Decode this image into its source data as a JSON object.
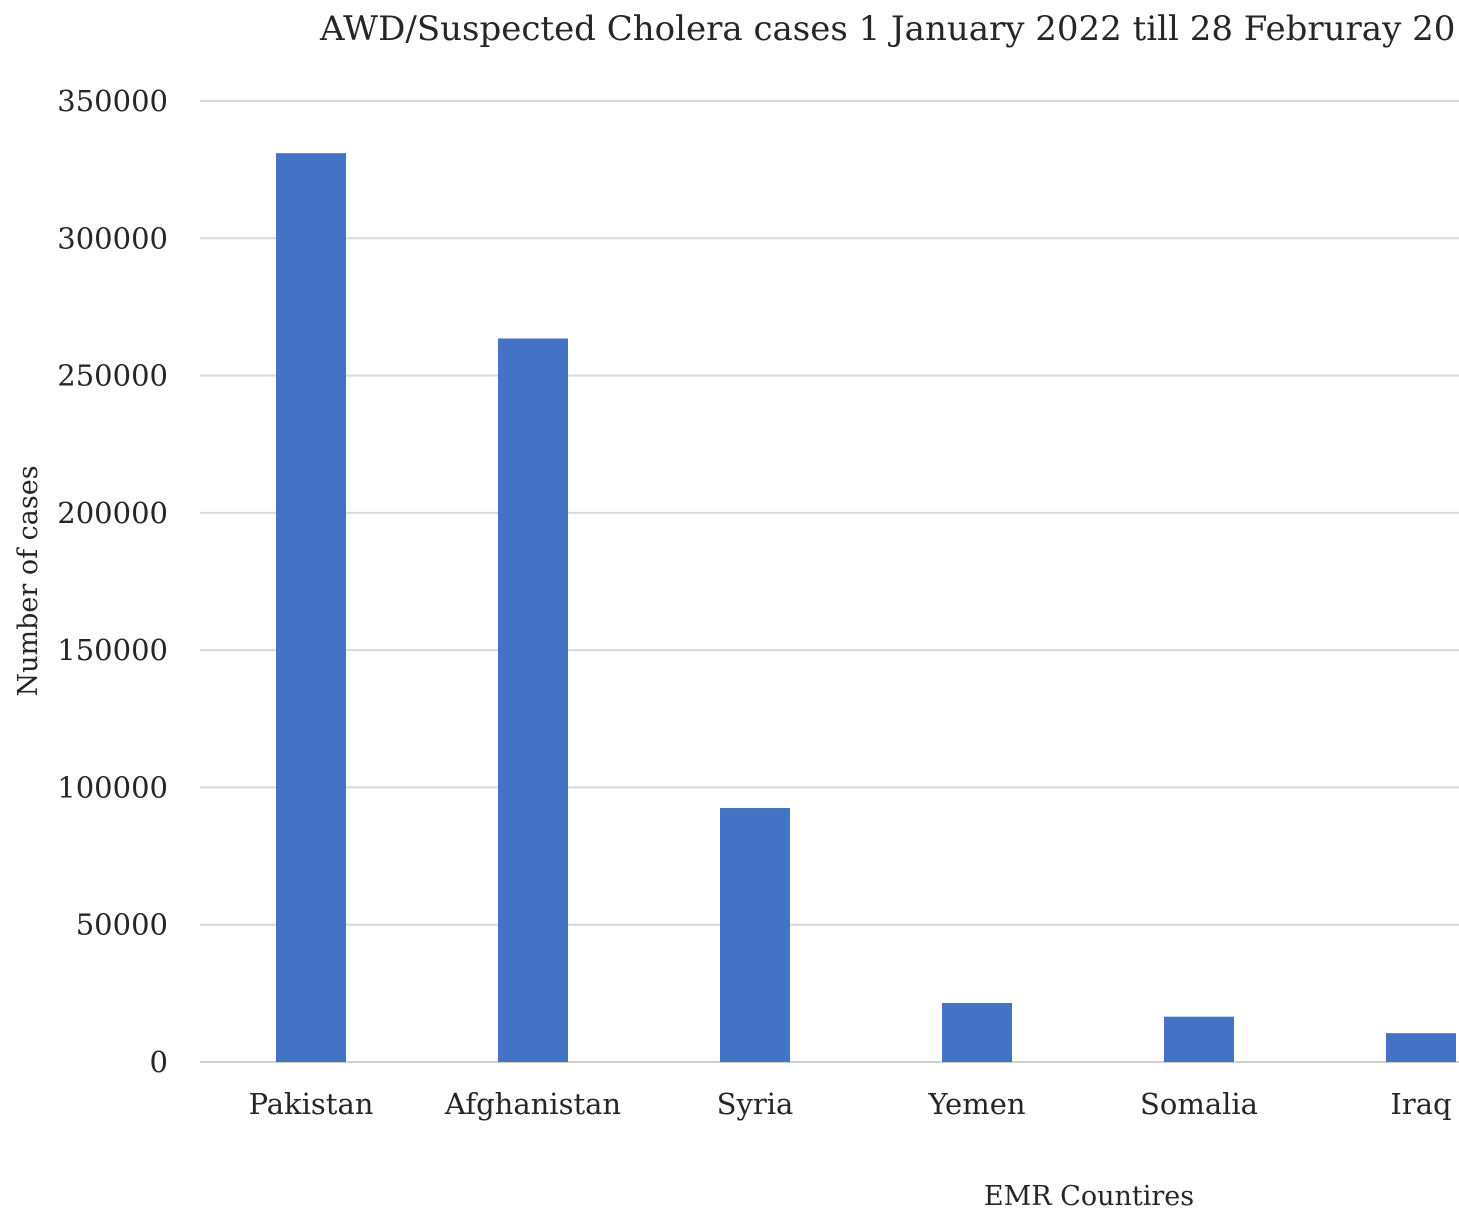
{
  "chart_data": {
    "type": "bar",
    "title": "AWD/Suspected Cholera cases 1 January 2022 till 28 Februray  20",
    "xlabel": "EMR Countires",
    "ylabel": "Number of cases",
    "categories": [
      "Pakistan",
      "Afghanistan",
      "Syria",
      "Yemen",
      "Somalia",
      "Iraq"
    ],
    "values": [
      331000,
      263500,
      92500,
      21500,
      16500,
      10500
    ],
    "ylim": [
      0,
      350000
    ],
    "yticks": [
      0,
      50000,
      100000,
      150000,
      200000,
      250000,
      300000,
      350000
    ],
    "grid": true,
    "legend": "none",
    "bar_color": "#4472c4"
  }
}
